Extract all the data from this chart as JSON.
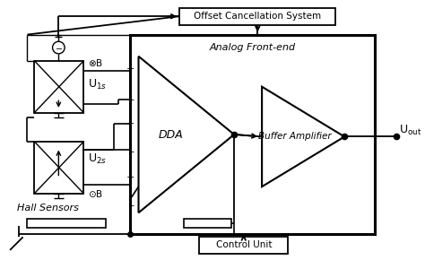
{
  "bg_color": "#ffffff",
  "offset_box_text": "Offset Cancellation System",
  "control_box_text": "Control Unit",
  "dda_text": "DDA",
  "buffer_text": "Buffer Amplifier",
  "analog_frontend_text": "Analog Front-end",
  "hall_text": "Hall Sensors"
}
